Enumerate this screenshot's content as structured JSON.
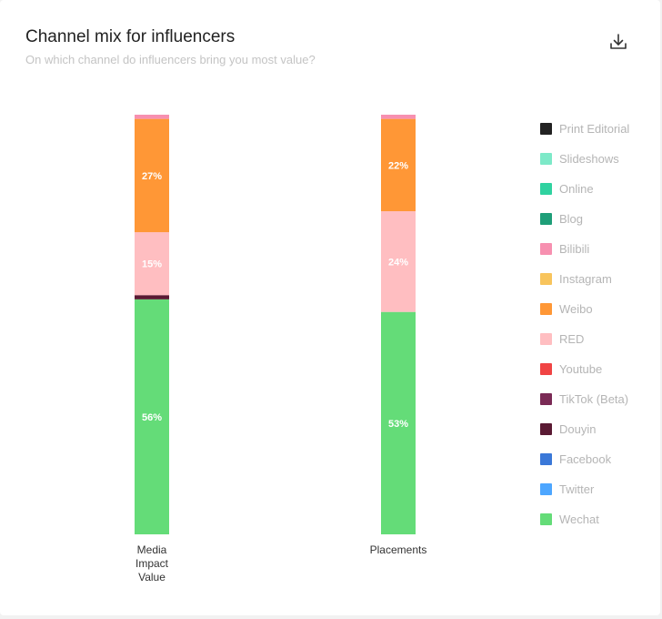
{
  "header": {
    "title": "Channel mix for influencers",
    "subtitle": "On which channel do influencers bring you most value?",
    "download_icon": "download-icon"
  },
  "chart_data": {
    "type": "bar",
    "stacked": true,
    "ylim": [
      0,
      100
    ],
    "categories": [
      [
        "Media",
        "Impact",
        "Value"
      ],
      [
        "Placements"
      ]
    ],
    "series": [
      {
        "name": "Wechat",
        "color": "#64dc78",
        "values": [
          56,
          53
        ]
      },
      {
        "name": "Twitter",
        "color": "#4da6ff",
        "values": [
          0,
          0
        ]
      },
      {
        "name": "Facebook",
        "color": "#3a78d8",
        "values": [
          0,
          0
        ]
      },
      {
        "name": "Douyin",
        "color": "#5a1a33",
        "values": [
          1,
          0
        ]
      },
      {
        "name": "TikTok (Beta)",
        "color": "#7a2a55",
        "values": [
          0,
          0
        ]
      },
      {
        "name": "Youtube",
        "color": "#f04444",
        "values": [
          0,
          0
        ]
      },
      {
        "name": "RED",
        "color": "#ffbec1",
        "values": [
          15,
          24
        ]
      },
      {
        "name": "Weibo",
        "color": "#ff9736",
        "values": [
          27,
          22
        ]
      },
      {
        "name": "Instagram",
        "color": "#f8c45c",
        "values": [
          0,
          0
        ]
      },
      {
        "name": "Bilibili",
        "color": "#f790b0",
        "values": [
          1,
          1
        ]
      },
      {
        "name": "Blog",
        "color": "#1e9e78",
        "values": [
          0,
          0
        ]
      },
      {
        "name": "Online",
        "color": "#30d2a0",
        "values": [
          0,
          0
        ]
      },
      {
        "name": "Slideshows",
        "color": "#7de9c8",
        "values": [
          0,
          0
        ]
      },
      {
        "name": "Print Editorial",
        "color": "#222222",
        "values": [
          0,
          0
        ]
      }
    ],
    "data_labels": [
      [
        "56%",
        "",
        "",
        "",
        "",
        "",
        "15%",
        "27%",
        "",
        "",
        "",
        "",
        "",
        ""
      ],
      [
        "53%",
        "",
        "",
        "",
        "",
        "",
        "24%",
        "22%",
        "",
        "",
        "",
        "",
        "",
        ""
      ]
    ],
    "legend": {
      "position": "right",
      "order": [
        "Print Editorial",
        "Slideshows",
        "Online",
        "Blog",
        "Bilibili",
        "Instagram",
        "Weibo",
        "RED",
        "Youtube",
        "TikTok (Beta)",
        "Douyin",
        "Facebook",
        "Twitter",
        "Wechat"
      ]
    }
  }
}
